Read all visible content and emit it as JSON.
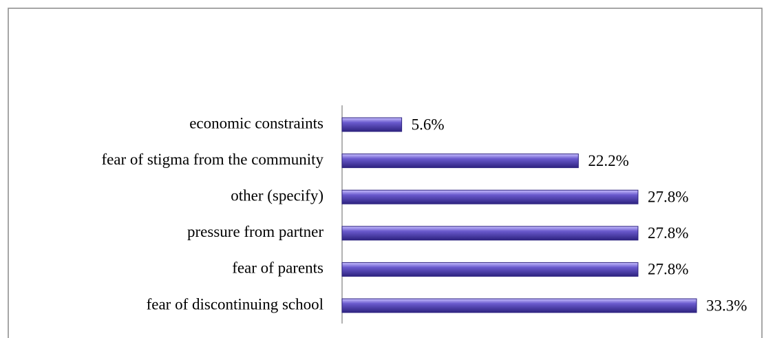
{
  "chart_data": {
    "type": "bar",
    "orientation": "horizontal",
    "categories": [
      "economic constraints",
      "fear of stigma from the community",
      "other (specify)",
      "pressure from partner",
      "fear of parents",
      "fear of discontinuing school"
    ],
    "values": [
      5.6,
      22.2,
      27.8,
      27.8,
      27.8,
      33.3
    ],
    "value_labels": [
      "5.6%",
      "22.2%",
      "27.8%",
      "27.8%",
      "27.8%",
      "33.3%"
    ],
    "color": "#6a5acd"
  }
}
